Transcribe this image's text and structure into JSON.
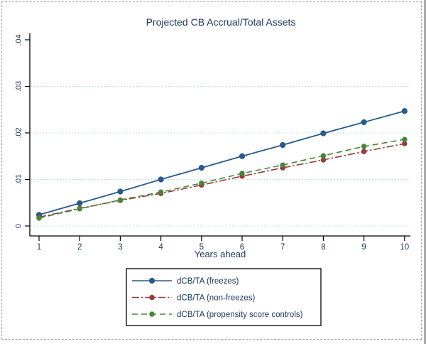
{
  "figure": {
    "background": "#ffffff",
    "marquee_border_color": "#a5a5a5",
    "edge_strip_color": "#a8a8a8"
  },
  "chart_data": {
    "type": "line",
    "title": "Projected CB Accrual/Total Assets",
    "xlabel": "Years ahead",
    "ylabel": "",
    "x": [
      1,
      2,
      3,
      4,
      5,
      6,
      7,
      8,
      9,
      10
    ],
    "xtick_labels": [
      "1",
      "2",
      "3",
      "4",
      "5",
      "6",
      "7",
      "8",
      "9",
      "10"
    ],
    "xlim": [
      1,
      10
    ],
    "ylim": [
      0,
      0.04
    ],
    "yticks": [
      0,
      0.01,
      0.02,
      0.03,
      0.04
    ],
    "ytick_labels": [
      "0",
      ".01",
      ".02",
      ".03",
      ".04"
    ],
    "grid": "horizontal dotted gridlines at 0, .01, .02, .03",
    "gridline_color": "#a9d8e4",
    "axis_color": "#000000",
    "text_color": "#17365d",
    "legend_position": "bottom-center boxed",
    "series": [
      {
        "name": "dCB/TA (freezes)",
        "color": "#27598a",
        "line_style": "solid",
        "marker": "circle",
        "values": [
          0.0024,
          0.0049,
          0.0074,
          0.01,
          0.0125,
          0.015,
          0.0174,
          0.0199,
          0.0223,
          0.0247
        ]
      },
      {
        "name": "dCB/TA (non-freezes)",
        "color": "#993a3e",
        "line_style": "dash-dot",
        "marker": "circle",
        "values": [
          0.0019,
          0.0038,
          0.0055,
          0.007,
          0.0088,
          0.0107,
          0.0125,
          0.0142,
          0.016,
          0.0177
        ]
      },
      {
        "name": "dCB/TA (propensity score controls)",
        "color": "#478538",
        "line_style": "dashed",
        "marker": "circle",
        "values": [
          0.0017,
          0.0037,
          0.0056,
          0.0073,
          0.0092,
          0.0113,
          0.0131,
          0.0151,
          0.0171,
          0.0186
        ]
      }
    ]
  }
}
